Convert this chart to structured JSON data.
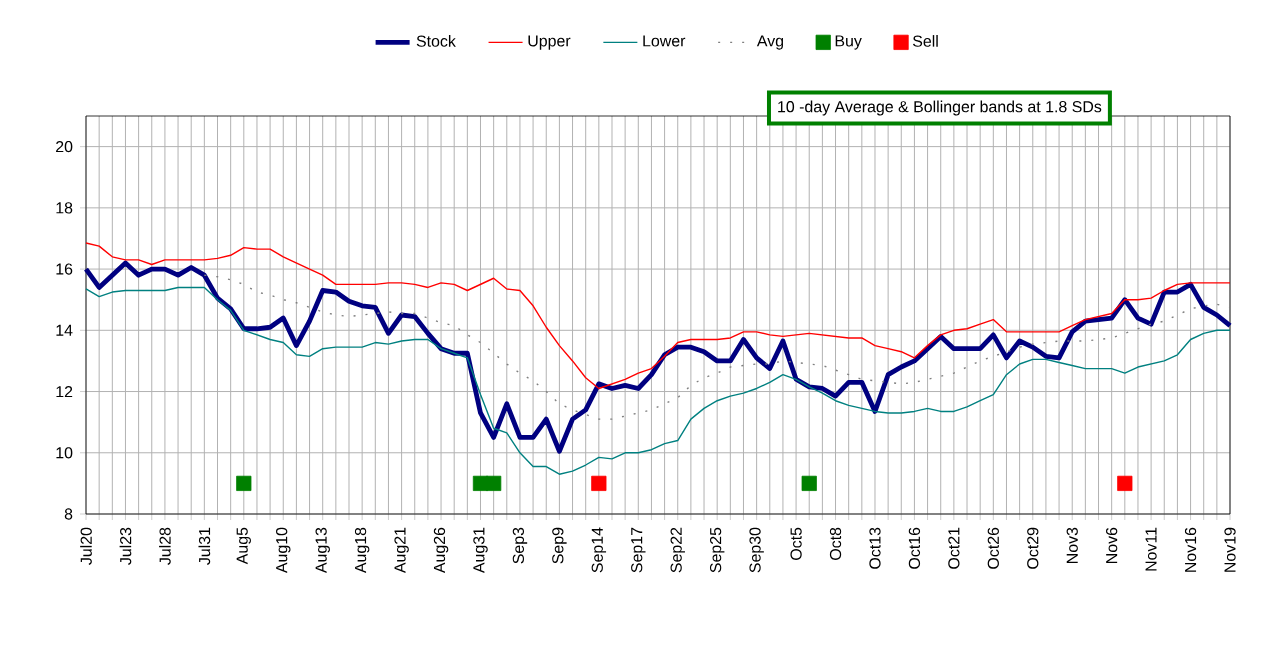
{
  "chart_data": {
    "type": "line",
    "annotations": [
      "10 -day Average & Bollinger bands at 1.8 SDs"
    ],
    "categories": [
      "Jul20",
      null,
      null,
      "Jul23",
      null,
      null,
      "Jul28",
      null,
      null,
      "Jul31",
      null,
      null,
      "Aug5",
      null,
      null,
      "Aug10",
      null,
      null,
      "Aug13",
      null,
      null,
      "Aug18",
      null,
      null,
      "Aug21",
      null,
      null,
      "Aug26",
      null,
      null,
      "Aug31",
      null,
      null,
      "Sep3",
      null,
      null,
      "Sep9",
      null,
      null,
      "Sep14",
      null,
      null,
      "Sep17",
      null,
      null,
      "Sep22",
      null,
      null,
      "Sep25",
      null,
      null,
      "Sep30",
      null,
      null,
      "Oct5",
      null,
      null,
      "Oct8",
      null,
      null,
      "Oct13",
      null,
      null,
      "Oct16",
      null,
      null,
      "Oct21",
      null,
      null,
      "Oct26",
      null,
      null,
      "Oct29",
      null,
      null,
      "Nov3",
      null,
      null,
      "Nov6",
      null,
      null,
      "Nov11",
      null,
      null,
      "Nov16",
      null,
      null,
      "Nov19"
    ],
    "series": [
      {
        "name": "Stock",
        "color": "#000080",
        "marker": "none",
        "line_style": "solid",
        "values": [
          16.0,
          15.4,
          15.8,
          16.2,
          15.8,
          16.0,
          16.0,
          15.8,
          16.05,
          15.8,
          15.05,
          14.7,
          14.05,
          14.05,
          14.1,
          14.4,
          13.5,
          14.3,
          15.3,
          15.25,
          14.95,
          14.8,
          14.75,
          13.9,
          14.5,
          14.45,
          13.9,
          13.4,
          13.25,
          13.25,
          11.3,
          10.5,
          11.6,
          10.5,
          10.5,
          11.1,
          10.05,
          11.1,
          11.4,
          12.25,
          12.1,
          12.2,
          12.1,
          12.55,
          13.2,
          13.45,
          13.45,
          13.3,
          13.0,
          13.0,
          13.7,
          13.1,
          12.75,
          13.65,
          12.4,
          12.15,
          12.1,
          11.85,
          12.3,
          12.3,
          11.35,
          12.55,
          12.8,
          13.0,
          13.4,
          13.8,
          13.4,
          13.4,
          13.4,
          13.85,
          13.1,
          13.65,
          13.45,
          13.15,
          13.1,
          13.95,
          14.3,
          14.35,
          14.4,
          15.0,
          14.4,
          14.2,
          15.25,
          15.25,
          15.5,
          14.75,
          14.5,
          14.15
        ]
      },
      {
        "name": "Upper",
        "color": "#ff0000",
        "marker": "none",
        "line_style": "solid",
        "values": [
          16.85,
          16.75,
          16.4,
          16.3,
          16.3,
          16.15,
          16.3,
          16.3,
          16.3,
          16.3,
          16.35,
          16.45,
          16.7,
          16.65,
          16.65,
          16.4,
          16.2,
          16.0,
          15.8,
          15.5,
          15.5,
          15.5,
          15.5,
          15.55,
          15.55,
          15.5,
          15.4,
          15.55,
          15.5,
          15.3,
          15.5,
          15.7,
          15.35,
          15.3,
          14.8,
          14.1,
          13.5,
          13.0,
          12.45,
          12.1,
          12.25,
          12.4,
          12.6,
          12.75,
          13.15,
          13.6,
          13.7,
          13.7,
          13.7,
          13.75,
          13.95,
          13.95,
          13.85,
          13.8,
          13.85,
          13.9,
          13.85,
          13.8,
          13.75,
          13.75,
          13.5,
          13.4,
          13.3,
          13.1,
          13.5,
          13.85,
          14.0,
          14.05,
          14.2,
          14.35,
          13.95,
          13.95,
          13.95,
          13.95,
          13.95,
          14.15,
          14.35,
          14.45,
          14.55,
          15.0,
          15.0,
          15.05,
          15.3,
          15.5,
          15.55,
          15.55,
          15.55,
          15.55
        ]
      },
      {
        "name": "Lower",
        "color": "#008080",
        "marker": "none",
        "line_style": "solid",
        "values": [
          15.35,
          15.1,
          15.25,
          15.3,
          15.3,
          15.3,
          15.3,
          15.4,
          15.4,
          15.4,
          15.0,
          14.65,
          14.0,
          13.85,
          13.7,
          13.6,
          13.2,
          13.15,
          13.4,
          13.45,
          13.45,
          13.45,
          13.6,
          13.55,
          13.65,
          13.7,
          13.7,
          13.4,
          13.25,
          13.1,
          11.9,
          10.8,
          10.65,
          10.0,
          9.55,
          9.55,
          9.3,
          9.4,
          9.6,
          9.85,
          9.8,
          10.0,
          10.0,
          10.1,
          10.3,
          10.4,
          11.1,
          11.45,
          11.7,
          11.85,
          11.95,
          12.1,
          12.3,
          12.55,
          12.4,
          12.15,
          11.95,
          11.7,
          11.55,
          11.45,
          11.35,
          11.3,
          11.3,
          11.35,
          11.45,
          11.35,
          11.35,
          11.5,
          11.7,
          11.9,
          12.55,
          12.9,
          13.05,
          13.05,
          12.95,
          12.85,
          12.75,
          12.75,
          12.75,
          12.6,
          12.8,
          12.9,
          13.0,
          13.2,
          13.7,
          13.9,
          14.0,
          14.0
        ]
      },
      {
        "name": "Avg",
        "color": "#808080",
        "marker": "none",
        "line_style": "dotted",
        "values": [
          null,
          null,
          null,
          null,
          null,
          null,
          null,
          null,
          null,
          15.8,
          15.75,
          15.65,
          15.5,
          15.25,
          15.15,
          15.0,
          14.9,
          14.75,
          14.6,
          14.5,
          14.45,
          14.5,
          14.55,
          14.6,
          14.55,
          14.55,
          14.4,
          14.25,
          14.15,
          13.85,
          13.6,
          13.25,
          12.9,
          12.6,
          12.35,
          12.0,
          11.6,
          11.4,
          11.25,
          11.1,
          11.1,
          11.2,
          11.3,
          11.4,
          11.6,
          11.8,
          12.2,
          12.45,
          12.6,
          12.8,
          12.85,
          12.9,
          12.9,
          13.0,
          12.95,
          12.9,
          12.85,
          12.7,
          12.55,
          12.4,
          12.35,
          12.3,
          12.25,
          12.3,
          12.4,
          12.5,
          12.6,
          12.8,
          13.0,
          13.15,
          13.3,
          13.45,
          13.55,
          13.6,
          13.65,
          13.65,
          13.65,
          13.7,
          13.75,
          13.9,
          14.05,
          14.2,
          14.3,
          14.5,
          14.7,
          14.8,
          14.85,
          14.75
        ]
      },
      {
        "name": "Buy",
        "type": "scatter",
        "color": "#008000",
        "marker": "square",
        "values": [
          null,
          null,
          null,
          null,
          null,
          null,
          null,
          null,
          null,
          null,
          null,
          null,
          9,
          null,
          null,
          null,
          null,
          null,
          null,
          null,
          null,
          null,
          null,
          null,
          null,
          null,
          null,
          null,
          null,
          null,
          9,
          9,
          null,
          null,
          null,
          null,
          null,
          null,
          null,
          null,
          null,
          null,
          null,
          null,
          null,
          null,
          null,
          null,
          null,
          null,
          null,
          null,
          null,
          null,
          null,
          9,
          null,
          null,
          null,
          null,
          null,
          null,
          null,
          null,
          null,
          null,
          null,
          null,
          null,
          null,
          null,
          null,
          null,
          null,
          null,
          null,
          null,
          null,
          null,
          null,
          null,
          null,
          null,
          null,
          null,
          null,
          null,
          null
        ]
      },
      {
        "name": "Sell",
        "type": "scatter",
        "color": "#ff0000",
        "marker": "square",
        "values": [
          null,
          null,
          null,
          null,
          null,
          null,
          null,
          null,
          null,
          null,
          null,
          null,
          null,
          null,
          null,
          null,
          null,
          null,
          null,
          null,
          null,
          null,
          null,
          null,
          null,
          null,
          null,
          null,
          null,
          null,
          null,
          null,
          null,
          null,
          null,
          null,
          null,
          null,
          null,
          9,
          null,
          null,
          null,
          null,
          null,
          null,
          null,
          null,
          null,
          null,
          null,
          null,
          null,
          null,
          null,
          null,
          null,
          null,
          null,
          null,
          null,
          null,
          null,
          null,
          null,
          null,
          null,
          null,
          null,
          null,
          null,
          null,
          null,
          null,
          null,
          null,
          null,
          null,
          null,
          9,
          null,
          null,
          null,
          null,
          null,
          null,
          null,
          null
        ]
      }
    ],
    "ylim": [
      8,
      21
    ],
    "yticks": [
      8,
      10,
      12,
      14,
      16,
      18,
      20
    ],
    "grid": true,
    "legend": "top"
  }
}
